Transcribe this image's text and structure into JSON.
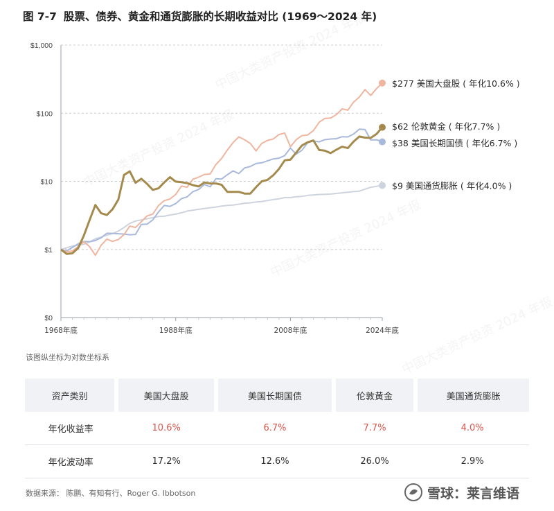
{
  "title": {
    "figure_no": "图 7-7",
    "text": "股票、债券、黄金和通货膨胀的长期收益对比 (1969～2024 年)"
  },
  "watermark": "中国大类资产投资 2024 年报",
  "axis_note": "该图纵坐标为对数坐标系",
  "source": "数据来源：  陈鹏、有知有行、Roger G. Ibbotson",
  "logo_text": "雪球：莱言维语",
  "colors": {
    "stocks": "#efb59f",
    "gold": "#a58a4d",
    "bonds": "#a9b9dc",
    "inflation": "#cdd4dd",
    "red_value": "#d8544c"
  },
  "chart_data": {
    "type": "line",
    "scale": "log",
    "ylim": [
      1,
      1000
    ],
    "yticks": [
      {
        "value": 0.1,
        "label": "$0"
      },
      {
        "value": 1,
        "label": "$1"
      },
      {
        "value": 10,
        "label": "$10"
      },
      {
        "value": 100,
        "label": "$100"
      },
      {
        "value": 1000,
        "label": "$1,000"
      }
    ],
    "xlim": [
      1968,
      2024
    ],
    "xticks": [
      {
        "value": 1968,
        "label": "1968年底"
      },
      {
        "value": 1988,
        "label": "1988年底"
      },
      {
        "value": 2008,
        "label": "2008年底"
      },
      {
        "value": 2024,
        "label": "2024年底"
      }
    ],
    "grid": true,
    "series": [
      {
        "key": "stocks",
        "name": "美国大盘股",
        "end_label": "$277 美国大盘股 ( 年化10.6% )",
        "x": [
          1968,
          1969,
          1970,
          1971,
          1972,
          1973,
          1974,
          1975,
          1976,
          1977,
          1978,
          1979,
          1980,
          1981,
          1982,
          1983,
          1984,
          1985,
          1986,
          1987,
          1988,
          1989,
          1990,
          1991,
          1992,
          1993,
          1994,
          1995,
          1996,
          1997,
          1998,
          1999,
          2000,
          2001,
          2002,
          2003,
          2004,
          2005,
          2006,
          2007,
          2008,
          2009,
          2010,
          2011,
          2012,
          2013,
          2014,
          2015,
          2016,
          2017,
          2018,
          2019,
          2020,
          2021,
          2022,
          2023,
          2024
        ],
        "values": [
          1,
          0.92,
          0.95,
          1.1,
          1.3,
          1.1,
          0.82,
          1.15,
          1.42,
          1.31,
          1.4,
          1.65,
          2.2,
          2.1,
          2.55,
          3.1,
          3.3,
          4.4,
          5.2,
          5.5,
          6.4,
          8.5,
          8.2,
          10.7,
          11.5,
          12.6,
          12.8,
          17.6,
          21.6,
          28.8,
          37.1,
          44.9,
          40.8,
          36,
          28,
          36,
          39.9,
          41.9,
          48.5,
          51.1,
          32.2,
          40.8,
          46.9,
          47.9,
          55.6,
          73.6,
          83.7,
          84.9,
          95,
          115.8,
          110.8,
          145.7,
          172.5,
          222,
          181.8,
          229.6,
          277
        ]
      },
      {
        "key": "gold",
        "name": "伦敦黄金",
        "end_label": "$62 伦敦黄金 ( 年化7.7% )",
        "x": [
          1968,
          1969,
          1970,
          1971,
          1972,
          1973,
          1974,
          1975,
          1976,
          1977,
          1978,
          1979,
          1980,
          1981,
          1982,
          1983,
          1984,
          1985,
          1986,
          1987,
          1988,
          1989,
          1990,
          1991,
          1992,
          1993,
          1994,
          1995,
          1996,
          1997,
          1998,
          1999,
          2000,
          2001,
          2002,
          2003,
          2004,
          2005,
          2006,
          2007,
          2008,
          2009,
          2010,
          2011,
          2012,
          2013,
          2014,
          2015,
          2016,
          2017,
          2018,
          2019,
          2020,
          2021,
          2022,
          2023,
          2024
        ],
        "values": [
          1,
          0.86,
          0.88,
          1.05,
          1.6,
          2.7,
          4.5,
          3.4,
          3.2,
          3.9,
          5.4,
          12.4,
          14,
          9.5,
          10.9,
          9.2,
          7.5,
          7.9,
          9.6,
          11.5,
          9.9,
          9.7,
          9.4,
          8.8,
          8.4,
          9.6,
          9.3,
          9.3,
          8.9,
          7,
          7,
          7,
          6.6,
          6.6,
          8.2,
          10,
          10.5,
          12.3,
          15.2,
          20.3,
          20.8,
          26.4,
          33.6,
          37.4,
          39.8,
          28.8,
          28.2,
          25.9,
          29.1,
          32.2,
          30.7,
          38.3,
          45.5,
          43.8,
          43.4,
          49.5,
          62
        ]
      },
      {
        "key": "bonds",
        "name": "美国长期国债",
        "end_label": "$38 美国长期国债 ( 年化6.7% )",
        "x": [
          1968,
          1969,
          1970,
          1971,
          1972,
          1973,
          1974,
          1975,
          1976,
          1977,
          1978,
          1979,
          1980,
          1981,
          1982,
          1983,
          1984,
          1985,
          1986,
          1987,
          1988,
          1989,
          1990,
          1991,
          1992,
          1993,
          1994,
          1995,
          1996,
          1997,
          1998,
          1999,
          2000,
          2001,
          2002,
          2003,
          2004,
          2005,
          2006,
          2007,
          2008,
          2009,
          2010,
          2011,
          2012,
          2013,
          2014,
          2015,
          2016,
          2017,
          2018,
          2019,
          2020,
          2021,
          2022,
          2023,
          2024
        ],
        "values": [
          1,
          0.95,
          1.07,
          1.21,
          1.31,
          1.3,
          1.35,
          1.48,
          1.73,
          1.72,
          1.7,
          1.68,
          1.64,
          1.66,
          2.33,
          2.35,
          2.71,
          3.55,
          4.41,
          4.29,
          4.7,
          5.57,
          5.91,
          7.05,
          7.6,
          9,
          8.3,
          10.9,
          10.8,
          12.5,
          14.2,
          13,
          15.7,
          16.5,
          18.2,
          18.7,
          20,
          21.3,
          21.9,
          23.8,
          30.8,
          25,
          28.6,
          36.8,
          39.2,
          37.9,
          40.9,
          41.8,
          42.3,
          45.1,
          44.8,
          49.5,
          58.2,
          57.5,
          40.4,
          40.7,
          38
        ]
      },
      {
        "key": "inflation",
        "name": "美国通货膨胀",
        "end_label": "$9 美国通货膨胀 ( 年化4.0% )",
        "x": [
          1968,
          1969,
          1970,
          1971,
          1972,
          1973,
          1974,
          1975,
          1976,
          1977,
          1978,
          1979,
          1980,
          1981,
          1982,
          1983,
          1984,
          1985,
          1986,
          1987,
          1988,
          1989,
          1990,
          1991,
          1992,
          1993,
          1994,
          1995,
          1996,
          1997,
          1998,
          1999,
          2000,
          2001,
          2002,
          2003,
          2004,
          2005,
          2006,
          2007,
          2008,
          2009,
          2010,
          2011,
          2012,
          2013,
          2014,
          2015,
          2016,
          2017,
          2018,
          2019,
          2020,
          2021,
          2022,
          2023,
          2024
        ],
        "values": [
          1,
          1.06,
          1.12,
          1.15,
          1.19,
          1.29,
          1.43,
          1.52,
          1.62,
          1.71,
          1.86,
          2.1,
          2.41,
          2.61,
          2.71,
          2.82,
          2.93,
          3.04,
          3.07,
          3.2,
          3.3,
          3.45,
          3.66,
          3.77,
          3.88,
          3.98,
          4.09,
          4.19,
          4.33,
          4.42,
          4.49,
          4.61,
          4.77,
          4.84,
          4.96,
          5.06,
          5.22,
          5.4,
          5.54,
          5.77,
          5.77,
          5.93,
          6.02,
          6.21,
          6.32,
          6.41,
          6.45,
          6.5,
          6.64,
          6.78,
          6.91,
          7.07,
          7.17,
          7.67,
          8.17,
          8.44,
          8.7
        ]
      }
    ]
  },
  "table": {
    "headers": [
      "资产类别",
      "美国大盘股",
      "美国长期国债",
      "伦敦黄金",
      "美国通货膨胀"
    ],
    "rows": [
      {
        "label": "年化收益率",
        "values": [
          "10.6%",
          "6.7%",
          "7.7%",
          "4.0%"
        ]
      },
      {
        "label": "年化波动率",
        "values": [
          "17.2%",
          "12.6%",
          "26.0%",
          "2.9%"
        ]
      }
    ]
  }
}
